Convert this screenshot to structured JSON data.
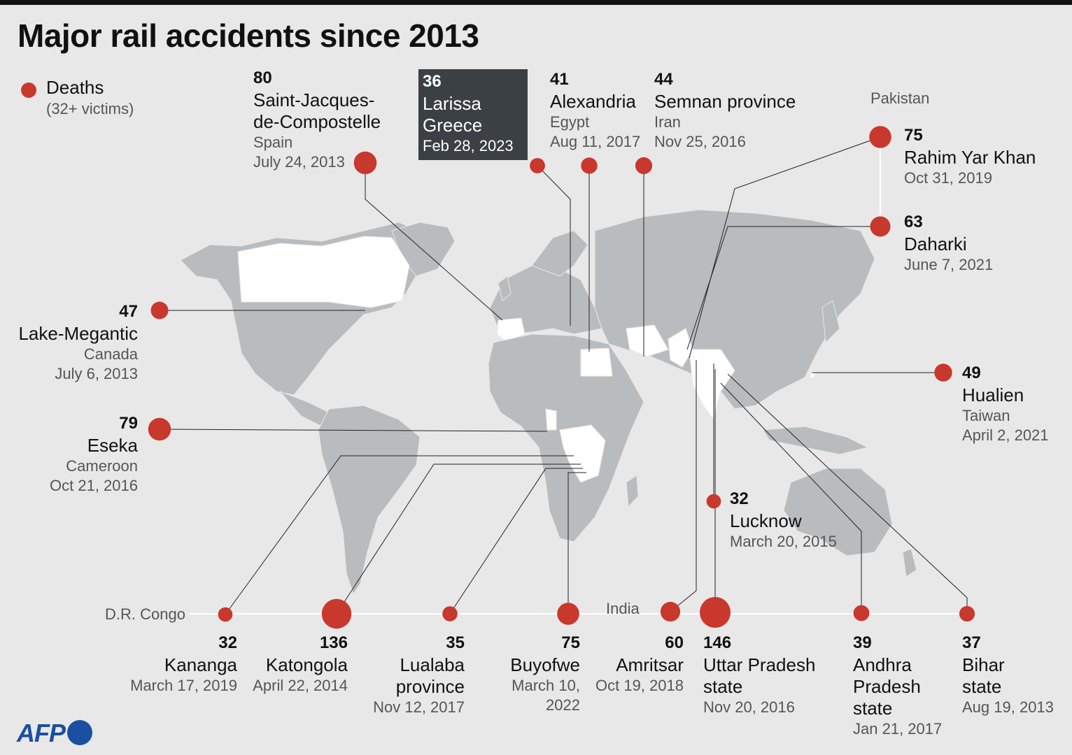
{
  "title": "Major rail accidents since 2013",
  "legend": {
    "label": "Deaths",
    "sublabel": "(32+ victims)"
  },
  "colors": {
    "dot": "#c8382c",
    "land": "#b8bcbf",
    "highlight_land": "#ffffff",
    "background": "#e8e8e8",
    "highlight_box": "#3a4043"
  },
  "group_labels": {
    "pakistan": "Pakistan",
    "drcongo": "D.R. Congo",
    "india": "India"
  },
  "accidents": [
    {
      "deaths": "80",
      "city": "Saint-Jacques-\nde-Compostelle",
      "country": "Spain",
      "date": "July 24, 2013"
    },
    {
      "deaths": "36",
      "city": "Larissa",
      "country": "Greece",
      "date": "Feb 28, 2023"
    },
    {
      "deaths": "41",
      "city": "Alexandria",
      "country": "Egypt",
      "date": "Aug 11, 2017"
    },
    {
      "deaths": "44",
      "city": "Semnan province",
      "country": "Iran",
      "date": "Nov 25, 2016"
    },
    {
      "deaths": "75",
      "city": "Rahim Yar Khan",
      "country": "",
      "date": "Oct 31, 2019"
    },
    {
      "deaths": "63",
      "city": "Daharki",
      "country": "",
      "date": "June 7, 2021"
    },
    {
      "deaths": "47",
      "city": "Lake-Megantic",
      "country": "Canada",
      "date": "July 6, 2013"
    },
    {
      "deaths": "49",
      "city": "Hualien",
      "country": "Taiwan",
      "date": "April 2, 2021"
    },
    {
      "deaths": "79",
      "city": "Eseka",
      "country": "Cameroon",
      "date": "Oct 21, 2016"
    },
    {
      "deaths": "32",
      "city": "Lucknow",
      "country": "",
      "date": "March 20, 2015"
    },
    {
      "deaths": "32",
      "city": "Kananga",
      "country": "",
      "date": "March 17, 2019"
    },
    {
      "deaths": "136",
      "city": "Katongola",
      "country": "",
      "date": "April 22, 2014"
    },
    {
      "deaths": "35",
      "city": "Lualaba\nprovince",
      "country": "",
      "date": "Nov 12, 2017"
    },
    {
      "deaths": "75",
      "city": "Buyofwe",
      "country": "",
      "date": "March 10,\n2022"
    },
    {
      "deaths": "60",
      "city": "Amritsar",
      "country": "",
      "date": "Oct 19, 2018"
    },
    {
      "deaths": "146",
      "city": "Uttar Pradesh\nstate",
      "country": "",
      "date": "Nov 20, 2016"
    },
    {
      "deaths": "39",
      "city": "Andhra\nPradesh\nstate",
      "country": "",
      "date": "Jan 21, 2017"
    },
    {
      "deaths": "37",
      "city": "Bihar\nstate",
      "country": "",
      "date": "Aug 19, 2013"
    }
  ],
  "credit": "AFP"
}
